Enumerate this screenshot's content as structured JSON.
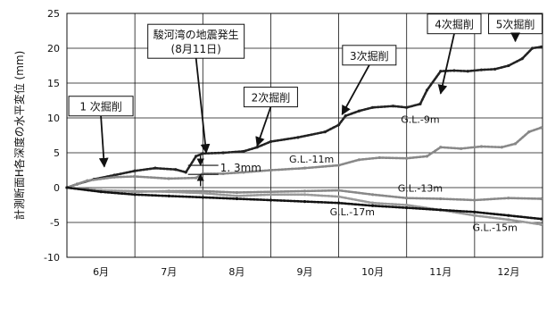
{
  "chart_data": {
    "type": "line",
    "ylabel": "計測断面H各深度の水平変位 (mm)",
    "ylim": [
      -10,
      25
    ],
    "yticks": [
      25,
      20,
      15,
      10,
      5,
      0,
      -5,
      -10
    ],
    "xlim": [
      0,
      7
    ],
    "month_boundaries": [
      0,
      1,
      2,
      3,
      4,
      5,
      6,
      7
    ],
    "xtick_labels": [
      "6月",
      "7月",
      "8月",
      "9月",
      "10月",
      "11月",
      "12月"
    ],
    "series": [
      {
        "name": "G.L.-9m",
        "color": "#222222",
        "x": [
          0,
          0.15,
          0.4,
          0.7,
          1.0,
          1.3,
          1.6,
          1.75,
          1.9,
          2.0,
          2.3,
          2.6,
          2.8,
          3.0,
          3.4,
          3.8,
          4.0,
          4.1,
          4.3,
          4.5,
          4.8,
          5.0,
          5.2,
          5.3,
          5.5,
          5.7,
          5.9,
          6.1,
          6.3,
          6.5,
          6.7,
          6.85,
          6.98
        ],
        "y": [
          0,
          0.5,
          1.2,
          1.8,
          2.4,
          2.8,
          2.6,
          2.2,
          4.5,
          4.9,
          5.0,
          5.2,
          5.8,
          6.6,
          7.2,
          8.0,
          9.0,
          10.3,
          11.0,
          11.5,
          11.7,
          11.5,
          12.0,
          14.0,
          16.7,
          16.8,
          16.7,
          16.9,
          17.0,
          17.5,
          18.5,
          20.0,
          20.2
        ]
      },
      {
        "name": "G.L.-11m",
        "color": "#888888",
        "x": [
          0,
          0.3,
          0.7,
          1.0,
          1.5,
          1.9,
          2.0,
          2.3,
          2.6,
          3.0,
          3.5,
          4.0,
          4.3,
          4.6,
          5.0,
          5.3,
          5.5,
          5.8,
          6.1,
          6.4,
          6.6,
          6.8,
          6.98
        ],
        "y": [
          0,
          1.0,
          1.5,
          1.6,
          1.3,
          1.4,
          2.0,
          2.0,
          2.2,
          2.5,
          2.8,
          3.2,
          4.0,
          4.3,
          4.2,
          4.5,
          5.8,
          5.6,
          5.9,
          5.8,
          6.3,
          8.0,
          8.6
        ]
      },
      {
        "name": "G.L.-13m",
        "color": "#888888",
        "x": [
          0,
          0.5,
          1.0,
          1.5,
          2.0,
          2.5,
          3.0,
          3.5,
          4.0,
          4.5,
          5.0,
          5.5,
          6.0,
          6.5,
          6.98
        ],
        "y": [
          0,
          -0.4,
          -0.6,
          -0.5,
          -0.5,
          -0.7,
          -0.6,
          -0.5,
          -0.4,
          -1.0,
          -1.5,
          -1.6,
          -1.8,
          -1.5,
          -1.6
        ]
      },
      {
        "name": "G.L.-15m",
        "color": "#999999",
        "x": [
          0,
          0.5,
          1.0,
          1.5,
          2.0,
          2.5,
          3.0,
          3.5,
          4.0,
          4.5,
          5.0,
          5.5,
          6.0,
          6.5,
          6.98
        ],
        "y": [
          0,
          -0.4,
          -0.5,
          -0.6,
          -0.8,
          -1.2,
          -1.0,
          -1.0,
          -1.3,
          -2.2,
          -2.5,
          -3.2,
          -4.0,
          -4.6,
          -5.3
        ]
      },
      {
        "name": "G.L.-17m",
        "color": "#111111",
        "x": [
          0,
          0.5,
          1.0,
          1.5,
          2.0,
          2.5,
          3.0,
          3.5,
          4.0,
          4.5,
          5.0,
          5.5,
          6.0,
          6.5,
          6.98
        ],
        "y": [
          0,
          -0.6,
          -1.0,
          -1.2,
          -1.4,
          -1.6,
          -1.8,
          -2.0,
          -2.2,
          -2.6,
          -2.9,
          -3.2,
          -3.5,
          -4.0,
          -4.5
        ]
      }
    ],
    "series_labels": [
      {
        "text": "G.L.-9m",
        "x": 5.2,
        "y": 9.3
      },
      {
        "text": "G.L.-11m",
        "x": 3.6,
        "y": 3.6
      },
      {
        "text": "G.L.-13m",
        "x": 5.2,
        "y": -0.6
      },
      {
        "text": "G.L.-17m",
        "x": 4.2,
        "y": -4.0
      },
      {
        "text": "G.L.-15m",
        "x": 6.3,
        "y": -6.2
      }
    ],
    "annotations": [
      {
        "text": "1 次掘削",
        "box": true,
        "x": 0.5,
        "y": 11.7,
        "arrow_to": [
          0.55,
          3.0
        ]
      },
      {
        "text": "駿河湾の地震発生",
        "text2": "(8月11日)",
        "box": true,
        "x": 1.9,
        "y": 21.0,
        "arrow_to": [
          2.05,
          5.0
        ]
      },
      {
        "text": "2次掘削",
        "box": true,
        "x": 3.0,
        "y": 13.0,
        "arrow_to": [
          2.8,
          6.0
        ]
      },
      {
        "text": "3次掘削",
        "box": true,
        "x": 4.45,
        "y": 19.0,
        "arrow_to": [
          4.05,
          10.5
        ]
      },
      {
        "text": "4次掘削",
        "box": true,
        "x": 5.7,
        "y": 23.5,
        "arrow_to": [
          5.5,
          13.5
        ]
      },
      {
        "text": "5次掘削",
        "box": true,
        "x": 6.6,
        "y": 23.5,
        "arrow_to": [
          6.6,
          21.0
        ]
      },
      {
        "text": "1. 3mm",
        "box": false,
        "x": 2.15,
        "y": 2.8
      }
    ],
    "grid": true
  }
}
